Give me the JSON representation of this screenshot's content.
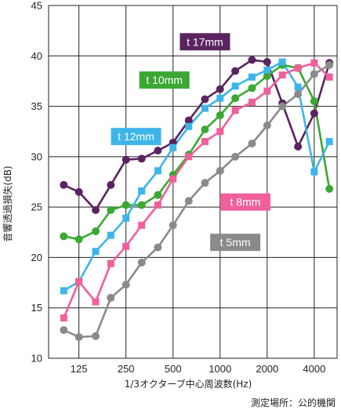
{
  "chart_data": {
    "type": "line",
    "title": "",
    "xlabel": "1/3オクターブ中心周波数(Hz)",
    "ylabel": "音響透過損失(dB)",
    "note": "測定場所：公的機関",
    "x_scale": "log",
    "xlim": [
      80,
      5600
    ],
    "ylim": [
      10,
      45
    ],
    "x_ticks": [
      125,
      250,
      500,
      1000,
      2000,
      4000
    ],
    "x_tick_labels": [
      "125",
      "250",
      "500",
      "1000",
      "2000",
      "4000"
    ],
    "y_ticks": [
      10,
      15,
      20,
      25,
      30,
      35,
      40,
      45
    ],
    "y_tick_labels": [
      "10",
      "15",
      "20",
      "25",
      "30",
      "35",
      "40",
      "45"
    ],
    "grid": true,
    "x": [
      100,
      125,
      160,
      200,
      250,
      315,
      400,
      500,
      630,
      800,
      1000,
      1250,
      1600,
      2000,
      2500,
      3150,
      4000,
      5000
    ],
    "series": [
      {
        "name": "t 17mm",
        "marker": "circle",
        "color": "#5b2360",
        "values": [
          27.2,
          26.5,
          24.7,
          27.2,
          29.7,
          29.8,
          30.6,
          31.4,
          33.6,
          35.7,
          36.7,
          38.5,
          39.6,
          39.4,
          35.3,
          31.0,
          34.3,
          39.3
        ]
      },
      {
        "name": "t 10mm",
        "marker": "circle",
        "color": "#3aa832",
        "values": [
          22.1,
          21.8,
          22.6,
          24.7,
          25.2,
          25.2,
          26.2,
          28.2,
          30.2,
          32.7,
          34.1,
          35.8,
          36.8,
          38.0,
          39.1,
          38.8,
          35.5,
          26.8
        ]
      },
      {
        "name": "t 12mm",
        "marker": "square",
        "color": "#3db5e8",
        "values": [
          16.7,
          17.6,
          20.6,
          22.2,
          23.9,
          26.6,
          28.6,
          30.9,
          33.0,
          34.8,
          35.8,
          37.0,
          37.9,
          38.6,
          39.4,
          36.9,
          28.5,
          31.5
        ]
      },
      {
        "name": "t 8mm",
        "marker": "square",
        "color": "#f0609a",
        "values": [
          14.0,
          17.6,
          15.6,
          19.4,
          21.1,
          23.2,
          25.2,
          27.8,
          30.0,
          31.5,
          32.5,
          34.6,
          35.4,
          36.5,
          38.1,
          38.8,
          39.3,
          37.9
        ]
      },
      {
        "name": "t 5mm",
        "marker": "circle",
        "color": "#8a8a8a",
        "values": [
          12.8,
          12.1,
          12.2,
          16.0,
          17.3,
          19.5,
          21.0,
          23.2,
          25.6,
          27.4,
          28.6,
          30.0,
          31.3,
          33.1,
          35.0,
          36.2,
          38.2,
          39.1
        ]
      }
    ],
    "annotations": [
      {
        "text": "t 17mm",
        "color": "#5b2360",
        "x": 800,
        "y": 41.4
      },
      {
        "text": "t 10mm",
        "color": "#3aa832",
        "x": 440,
        "y": 37.6
      },
      {
        "text": "t 12mm",
        "color": "#3db5e8",
        "x": 290,
        "y": 32.0
      },
      {
        "text": "t 8mm",
        "color": "#f0609a",
        "x": 1450,
        "y": 25.5
      },
      {
        "text": "t 5mm",
        "color": "#8a8a8a",
        "x": 1250,
        "y": 21.5
      }
    ],
    "colors": {
      "grid": "#222222",
      "background": "#ffffff"
    }
  }
}
